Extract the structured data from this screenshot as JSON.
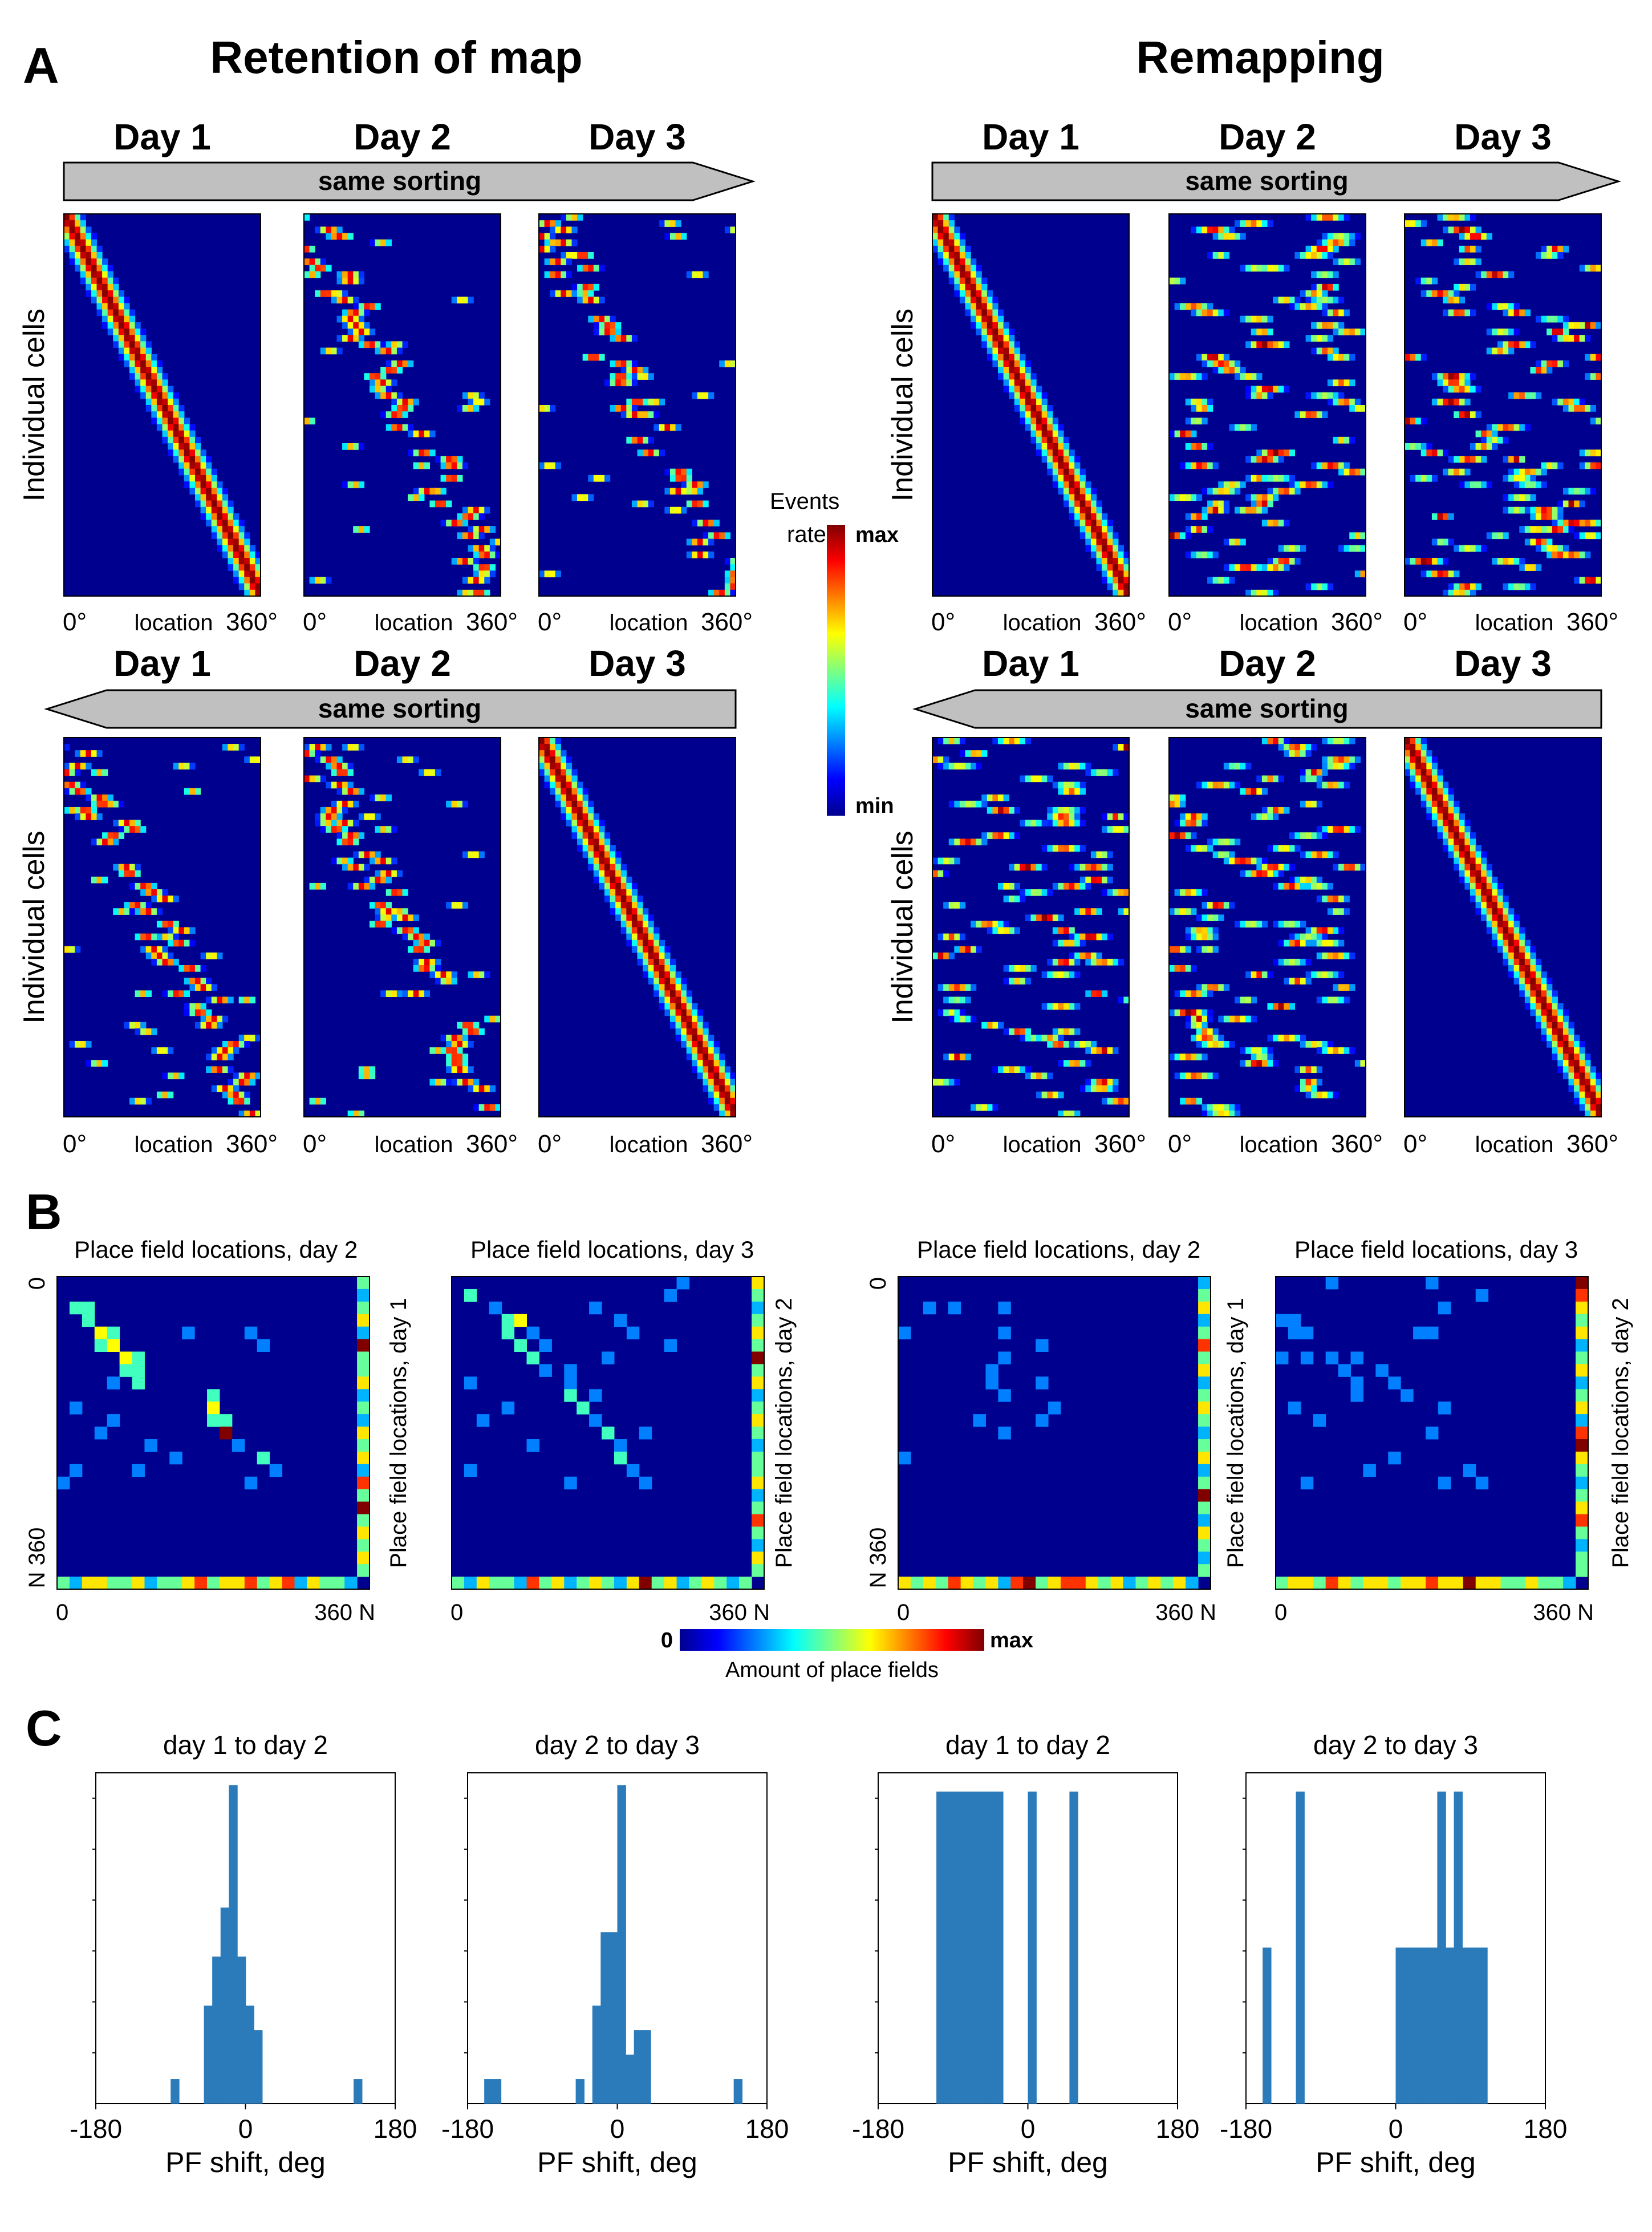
{
  "panel_labels": {
    "a": "A",
    "b": "B",
    "c": "C"
  },
  "colors": {
    "heat_low": "#00008f",
    "bar_fill": "#2b7bba",
    "arrow_fill": "#c0c0c0"
  },
  "panel_a": {
    "retention_title": "Retention of map",
    "remapping_title": "Remapping",
    "arrow_label": "same sorting",
    "ylabel": "Individual cells",
    "groups": {
      "retention_top": {
        "days": [
          "Day 1",
          "Day 2",
          "Day 3"
        ],
        "sorted_by": "Day 1"
      },
      "remapping_top": {
        "days": [
          "Day 1",
          "Day 2",
          "Day 3"
        ],
        "sorted_by": "Day 1"
      },
      "retention_bottom": {
        "days": [
          "Day 1",
          "Day 2",
          "Day 3"
        ],
        "sorted_by": "Day 3"
      },
      "remapping_bottom": {
        "days": [
          "Day 1",
          "Day 2",
          "Day 3"
        ],
        "sorted_by": "Day 3"
      }
    },
    "axis": {
      "left": "0°",
      "mid": "location",
      "right": "360°"
    },
    "colorbar": {
      "title_line1": "Events",
      "title_line2": "rate",
      "max": "max",
      "min": "min"
    }
  },
  "panel_b": {
    "colorbar": {
      "min": "0",
      "max": "max",
      "label": "Amount of place fields"
    },
    "axis": {
      "zero": "0",
      "end": "360 N",
      "y_end": "N 360"
    }
  },
  "chart_data": [
    {
      "type": "heatmap",
      "title": "Place field locations, day 2",
      "ylabel": "Place field locations, day 1",
      "xlim": [
        0,
        360
      ],
      "ylim": [
        0,
        360
      ],
      "n_bins": 24,
      "condition": "Retention of map",
      "cells": [
        [
          2,
          1,
          2
        ],
        [
          2,
          2,
          2
        ],
        [
          3,
          2,
          2
        ],
        [
          4,
          3,
          3
        ],
        [
          4,
          4,
          2
        ],
        [
          5,
          3,
          2
        ],
        [
          5,
          4,
          3
        ],
        [
          6,
          5,
          3
        ],
        [
          6,
          6,
          2
        ],
        [
          7,
          5,
          2
        ],
        [
          7,
          6,
          2
        ],
        [
          8,
          6,
          2
        ],
        [
          4,
          15,
          1
        ],
        [
          4,
          10,
          1
        ],
        [
          5,
          16,
          1
        ],
        [
          8,
          4,
          1
        ],
        [
          9,
          12,
          2
        ],
        [
          10,
          12,
          3
        ],
        [
          11,
          12,
          2
        ],
        [
          11,
          13,
          2
        ],
        [
          12,
          13,
          5
        ],
        [
          13,
          14,
          1
        ],
        [
          14,
          16,
          2
        ],
        [
          10,
          1,
          1
        ],
        [
          11,
          4,
          1
        ],
        [
          12,
          3,
          1
        ],
        [
          13,
          7,
          1
        ],
        [
          14,
          9,
          1
        ],
        [
          15,
          6,
          1
        ],
        [
          15,
          1,
          1
        ],
        [
          15,
          17,
          1
        ],
        [
          16,
          0,
          1
        ],
        [
          16,
          15,
          1
        ]
      ],
      "marginal_right": [
        2,
        1,
        2,
        3,
        1,
        5,
        2,
        2,
        3,
        1,
        2,
        1,
        3,
        2,
        3,
        1,
        4,
        2,
        5,
        2,
        3,
        2,
        3,
        2
      ],
      "marginal_bottom": [
        2,
        1,
        3,
        3,
        2,
        2,
        3,
        1,
        2,
        2,
        3,
        4,
        2,
        3,
        3,
        4,
        2,
        3,
        4,
        1,
        3,
        2,
        2,
        1
      ]
    },
    {
      "type": "heatmap",
      "title": "Place field locations, day 3",
      "ylabel": "Place field locations, day 2",
      "xlim": [
        0,
        360
      ],
      "ylim": [
        0,
        360
      ],
      "n_bins": 24,
      "condition": "Retention of map",
      "cells": [
        [
          1,
          1,
          2
        ],
        [
          2,
          3,
          1
        ],
        [
          3,
          4,
          2
        ],
        [
          3,
          5,
          3
        ],
        [
          4,
          4,
          2
        ],
        [
          4,
          6,
          1
        ],
        [
          5,
          5,
          2
        ],
        [
          5,
          7,
          1
        ],
        [
          6,
          6,
          2
        ],
        [
          6,
          12,
          1
        ],
        [
          7,
          7,
          1
        ],
        [
          7,
          9,
          1
        ],
        [
          8,
          9,
          1
        ],
        [
          9,
          9,
          2
        ],
        [
          9,
          11,
          1
        ],
        [
          10,
          10,
          2
        ],
        [
          11,
          11,
          1
        ],
        [
          12,
          12,
          2
        ],
        [
          13,
          13,
          1
        ],
        [
          14,
          13,
          2
        ],
        [
          15,
          14,
          1
        ],
        [
          16,
          15,
          1
        ],
        [
          2,
          11,
          1
        ],
        [
          3,
          13,
          1
        ],
        [
          5,
          17,
          1
        ],
        [
          8,
          1,
          1
        ],
        [
          10,
          4,
          1
        ],
        [
          11,
          2,
          1
        ],
        [
          12,
          15,
          1
        ],
        [
          13,
          6,
          1
        ],
        [
          1,
          17,
          1
        ],
        [
          0,
          18,
          1
        ],
        [
          4,
          14,
          1
        ],
        [
          16,
          9,
          1
        ],
        [
          15,
          1,
          1
        ]
      ],
      "marginal_right": [
        3,
        2,
        1,
        2,
        3,
        2,
        5,
        2,
        3,
        1,
        2,
        3,
        2,
        1,
        2,
        2,
        3,
        1,
        2,
        4,
        2,
        1,
        3,
        2
      ],
      "marginal_bottom": [
        2,
        1,
        3,
        2,
        2,
        1,
        4,
        2,
        3,
        1,
        2,
        3,
        2,
        1,
        3,
        5,
        2,
        3,
        1,
        2,
        3,
        2,
        1,
        2
      ]
    },
    {
      "type": "heatmap",
      "title": "Place field locations, day 2",
      "ylabel": "Place field locations, day 1",
      "xlim": [
        0,
        360
      ],
      "ylim": [
        0,
        360
      ],
      "n_bins": 24,
      "condition": "Remapping",
      "cells": [
        [
          2,
          2,
          1
        ],
        [
          2,
          4,
          1
        ],
        [
          2,
          8,
          1
        ],
        [
          4,
          0,
          1
        ],
        [
          4,
          8,
          1
        ],
        [
          5,
          11,
          1
        ],
        [
          6,
          8,
          1
        ],
        [
          7,
          7,
          1
        ],
        [
          8,
          7,
          1
        ],
        [
          8,
          11,
          1
        ],
        [
          9,
          8,
          1
        ],
        [
          10,
          12,
          1
        ],
        [
          11,
          6,
          1
        ],
        [
          11,
          11,
          1
        ],
        [
          12,
          8,
          1
        ],
        [
          14,
          0,
          1
        ]
      ],
      "marginal_right": [
        1,
        2,
        3,
        1,
        2,
        4,
        2,
        3,
        1,
        2,
        3,
        2,
        1,
        2,
        3,
        1,
        2,
        5,
        2,
        1,
        3,
        2,
        1,
        2
      ],
      "marginal_bottom": [
        3,
        2,
        3,
        2,
        4,
        3,
        2,
        3,
        1,
        4,
        5,
        2,
        3,
        4,
        4,
        3,
        2,
        3,
        1,
        2,
        3,
        2,
        3,
        1
      ]
    },
    {
      "type": "heatmap",
      "title": "Place field locations, day 3",
      "ylabel": "Place field locations, day 2",
      "xlim": [
        0,
        360
      ],
      "ylim": [
        0,
        360
      ],
      "n_bins": 24,
      "condition": "Remapping",
      "cells": [
        [
          0,
          4,
          1
        ],
        [
          0,
          12,
          1
        ],
        [
          1,
          16,
          1
        ],
        [
          2,
          13,
          1
        ],
        [
          3,
          0,
          1
        ],
        [
          3,
          1,
          1
        ],
        [
          4,
          1,
          1
        ],
        [
          4,
          2,
          1
        ],
        [
          4,
          11,
          1
        ],
        [
          4,
          12,
          1
        ],
        [
          6,
          0,
          1
        ],
        [
          6,
          2,
          1
        ],
        [
          6,
          4,
          1
        ],
        [
          6,
          6,
          1
        ],
        [
          7,
          5,
          1
        ],
        [
          7,
          8,
          1
        ],
        [
          8,
          6,
          1
        ],
        [
          8,
          9,
          1
        ],
        [
          9,
          6,
          1
        ],
        [
          9,
          10,
          1
        ],
        [
          10,
          1,
          1
        ],
        [
          10,
          13,
          1
        ],
        [
          11,
          3,
          1
        ],
        [
          12,
          12,
          1
        ],
        [
          14,
          9,
          1
        ],
        [
          15,
          7,
          1
        ],
        [
          16,
          2,
          1
        ],
        [
          16,
          13,
          1
        ],
        [
          15,
          15,
          1
        ],
        [
          16,
          16,
          1
        ]
      ],
      "marginal_right": [
        5,
        4,
        3,
        2,
        3,
        1,
        2,
        3,
        1,
        2,
        3,
        1,
        4,
        5,
        3,
        2,
        1,
        2,
        3,
        4,
        2,
        1,
        2,
        2
      ],
      "marginal_bottom": [
        2,
        3,
        3,
        2,
        4,
        3,
        2,
        3,
        3,
        2,
        3,
        3,
        4,
        3,
        3,
        5,
        3,
        3,
        2,
        2,
        3,
        2,
        2,
        1
      ]
    },
    {
      "type": "bar",
      "title": "day 1 to day 2",
      "xlabel": "PF shift, deg",
      "ylabel": "",
      "condition": "Retention of map",
      "xlim": [
        -180,
        180
      ],
      "ylim": [
        0,
        13.5
      ],
      "xticks": [
        -180,
        0,
        180
      ],
      "bin_width": 10,
      "bins": [
        [
          -90,
          1
        ],
        [
          -50,
          4
        ],
        [
          -40,
          6
        ],
        [
          -30,
          8
        ],
        [
          -20,
          13
        ],
        [
          -10,
          6
        ],
        [
          0,
          4
        ],
        [
          10,
          3
        ],
        [
          130,
          1
        ]
      ]
    },
    {
      "type": "bar",
      "title": "day 2 to day 3",
      "xlabel": "PF shift, deg",
      "ylabel": "",
      "condition": "Retention of map",
      "xlim": [
        -180,
        180
      ],
      "ylim": [
        0,
        13.5
      ],
      "xticks": [
        -180,
        0,
        180
      ],
      "bin_width": 10,
      "bins": [
        [
          -160,
          1
        ],
        [
          -150,
          1
        ],
        [
          -50,
          1
        ],
        [
          -30,
          4
        ],
        [
          -20,
          7
        ],
        [
          -10,
          7
        ],
        [
          0,
          13
        ],
        [
          10,
          2
        ],
        [
          20,
          3
        ],
        [
          30,
          3
        ],
        [
          140,
          1
        ]
      ]
    },
    {
      "type": "bar",
      "title": "day 1 to day 2",
      "xlabel": "PF shift, deg",
      "ylabel": "",
      "condition": "Remapping",
      "xlim": [
        -180,
        180
      ],
      "ylim": [
        0,
        1.06
      ],
      "xticks": [
        -180,
        0,
        180
      ],
      "bin_width": 10,
      "bins": [
        [
          -110,
          1
        ],
        [
          -100,
          1
        ],
        [
          -90,
          1
        ],
        [
          -80,
          1
        ],
        [
          -70,
          1
        ],
        [
          -60,
          1
        ],
        [
          -50,
          1
        ],
        [
          -40,
          1
        ],
        [
          0,
          1
        ],
        [
          50,
          1
        ]
      ]
    },
    {
      "type": "bar",
      "title": "day 2 to day 3",
      "xlabel": "PF shift, deg",
      "ylabel": "",
      "condition": "Remapping",
      "xlim": [
        -180,
        180
      ],
      "ylim": [
        0,
        2.12
      ],
      "xticks": [
        -180,
        0,
        180
      ],
      "bin_width": 10,
      "bins": [
        [
          -160,
          1
        ],
        [
          -120,
          2
        ],
        [
          0,
          1
        ],
        [
          10,
          1
        ],
        [
          20,
          1
        ],
        [
          30,
          1
        ],
        [
          40,
          1
        ],
        [
          50,
          2
        ],
        [
          60,
          1
        ],
        [
          70,
          2
        ],
        [
          80,
          1
        ],
        [
          90,
          1
        ],
        [
          100,
          1
        ]
      ]
    }
  ]
}
